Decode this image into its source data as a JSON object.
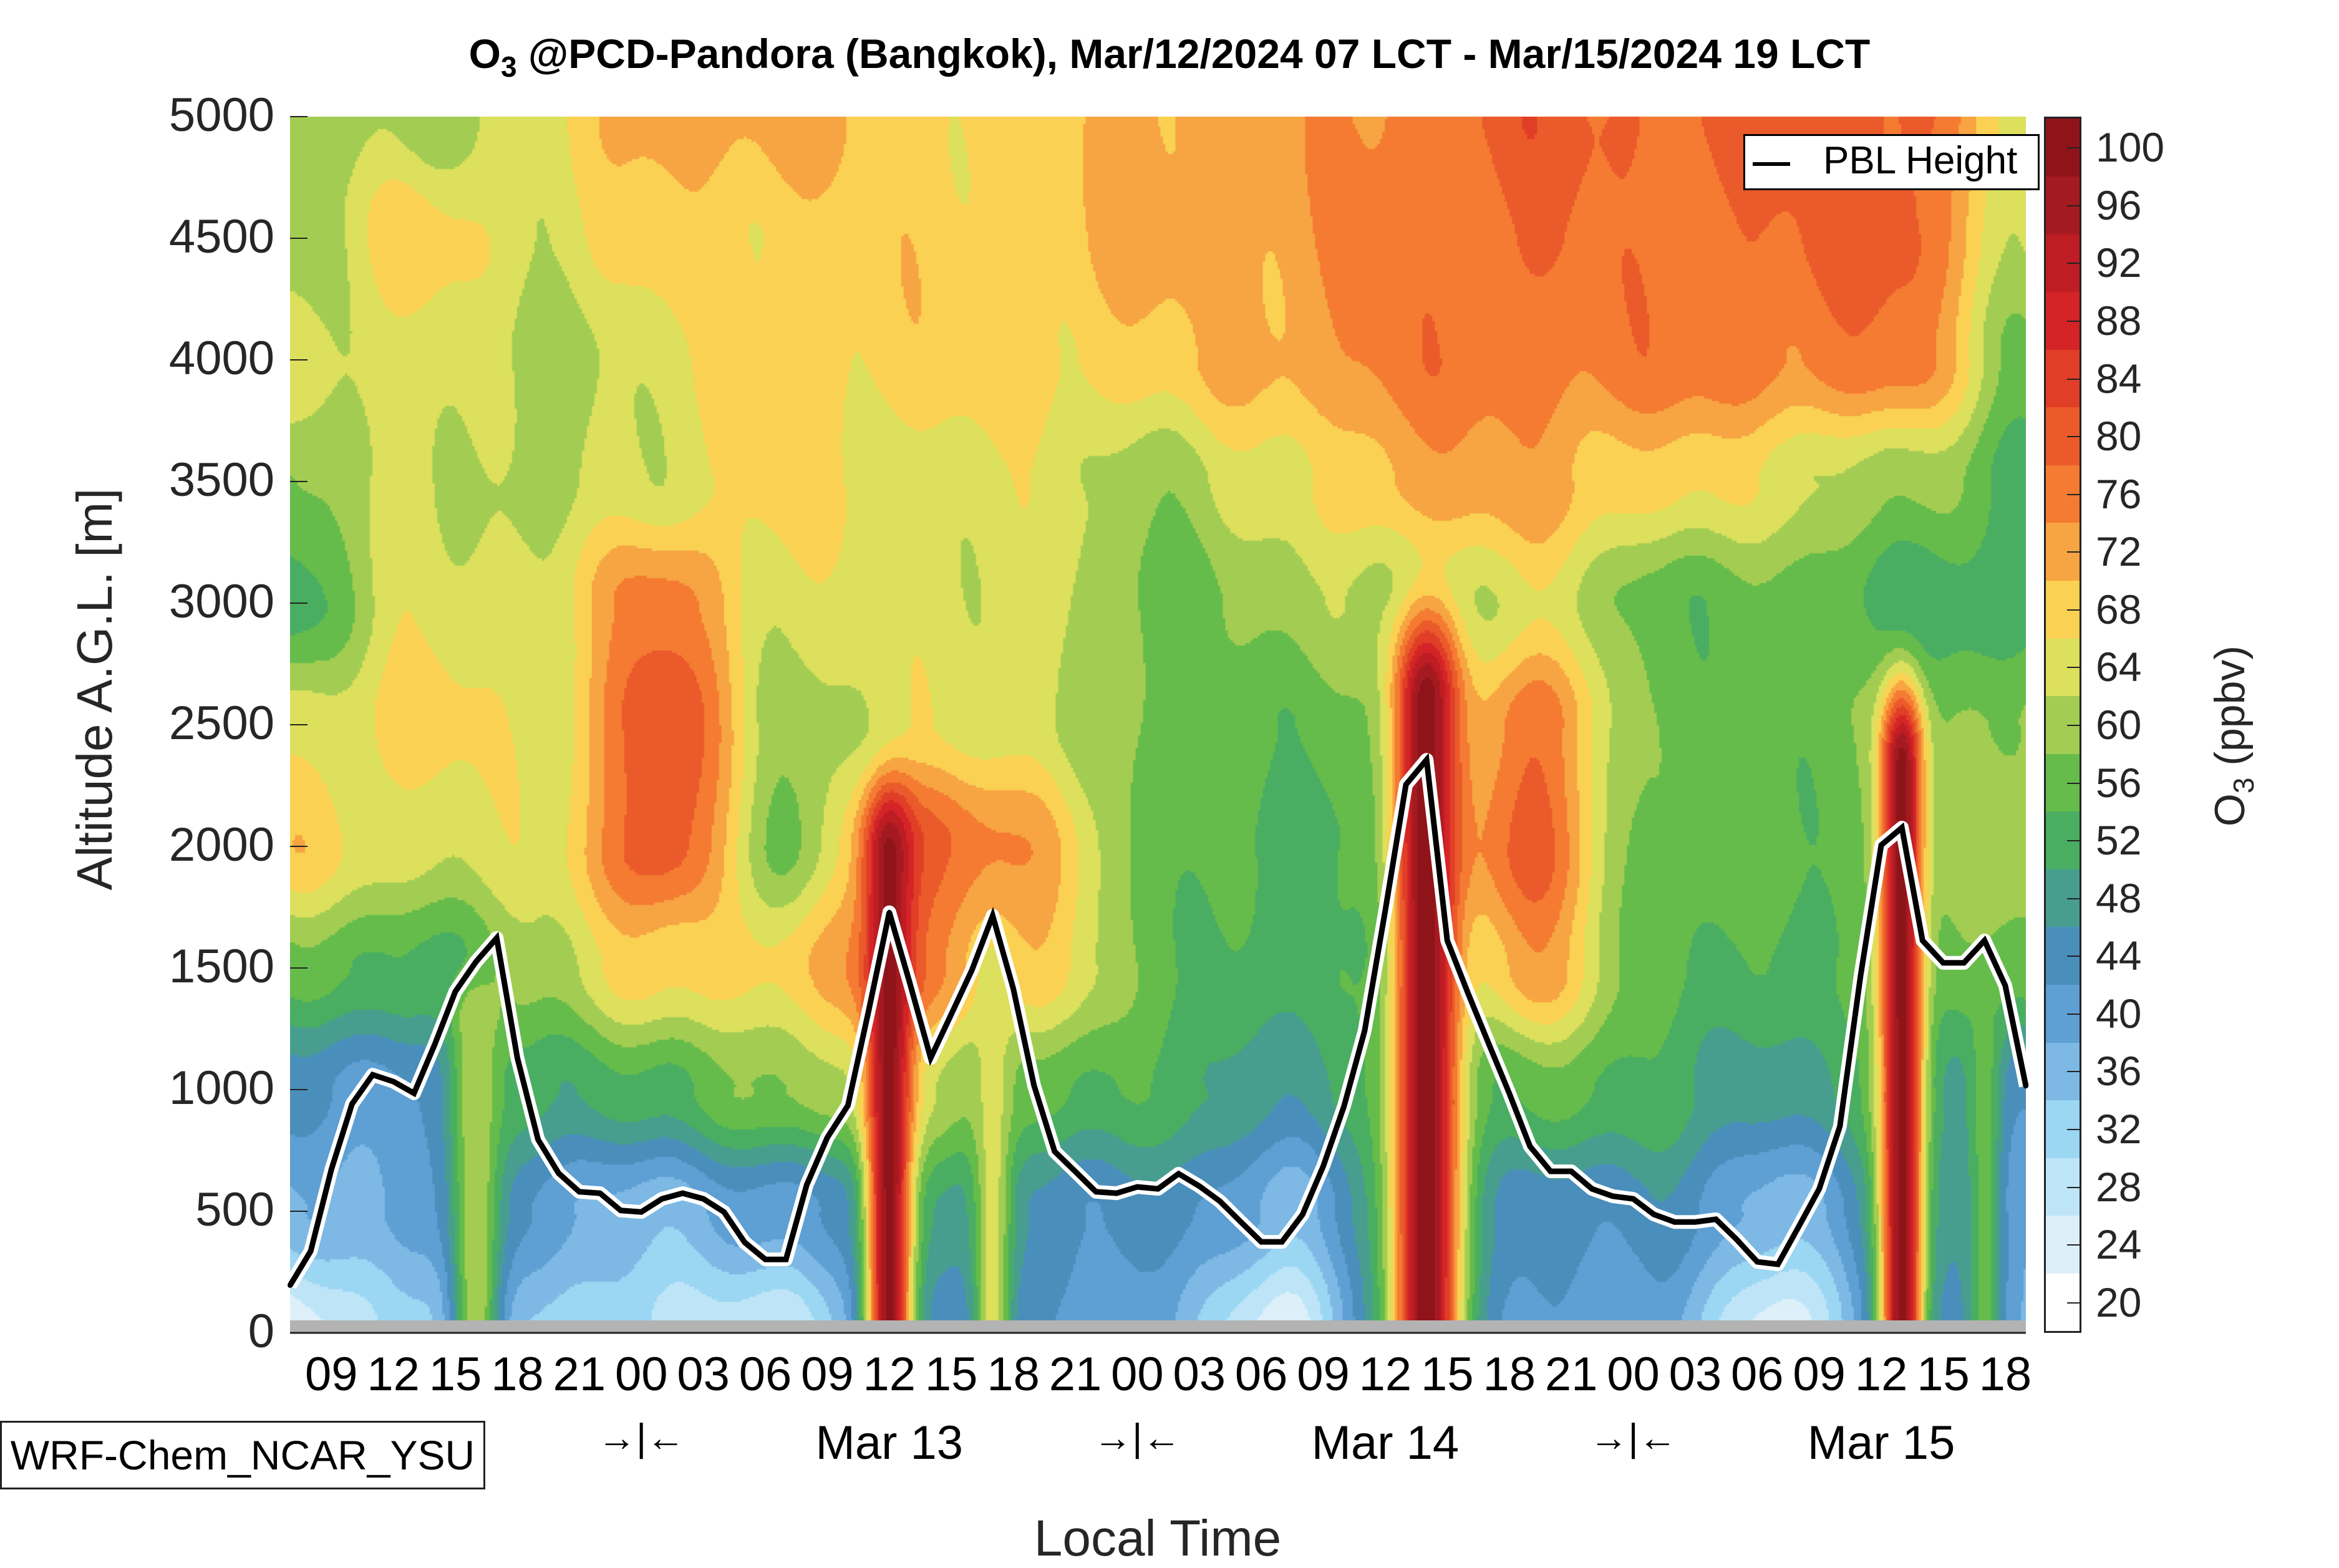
{
  "chart_data": {
    "type": "heatmap",
    "title_species": "O",
    "title_subscript": "3",
    "title_rest": " @PCD-Pandora (Bangkok), Mar/12/2024 07 LCT - Mar/15/2024 19 LCT",
    "xlabel": "Local Time",
    "ylabel": "Altitude A.G.L. [m]",
    "colorbar_label_species": "O",
    "colorbar_label_subscript": "3",
    "colorbar_label_rest": " (ppbv)",
    "model_label": "WRF-Chem_NCAR_YSU",
    "legend": {
      "entries": [
        {
          "label": "PBL Height",
          "color": "#000000"
        }
      ],
      "placement": "top-right"
    },
    "time_range_hours": [
      0,
      84
    ],
    "start_local_time": "Mar/12/2024 07 LCT",
    "ylim": [
      0,
      5000
    ],
    "yticks": [
      0,
      500,
      1000,
      1500,
      2000,
      2500,
      3000,
      3500,
      4000,
      4500,
      5000
    ],
    "xtick_hours": [
      2,
      5,
      8,
      11,
      14,
      17,
      20,
      23,
      26,
      29,
      32,
      35,
      38,
      41,
      44,
      47,
      50,
      53,
      56,
      59,
      62,
      65,
      68,
      71,
      74,
      77,
      80,
      83
    ],
    "xtick_labels": [
      "09",
      "12",
      "15",
      "18",
      "21",
      "00",
      "03",
      "06",
      "09",
      "12",
      "15",
      "18",
      "21",
      "00",
      "03",
      "06",
      "09",
      "12",
      "15",
      "18",
      "21",
      "00",
      "03",
      "06",
      "09",
      "12",
      "15",
      "18"
    ],
    "day_labels": [
      {
        "hour": 29,
        "label": "Mar 13"
      },
      {
        "hour": 53,
        "label": "Mar 14"
      },
      {
        "hour": 77,
        "label": "Mar 15"
      }
    ],
    "day_separators": [
      {
        "hour": 17,
        "label": "→|←"
      },
      {
        "hour": 41,
        "label": "→|←"
      },
      {
        "hour": 65,
        "label": "→|←"
      }
    ],
    "colorbar": {
      "levels": [
        20,
        24,
        28,
        32,
        36,
        40,
        44,
        48,
        52,
        56,
        60,
        64,
        68,
        72,
        76,
        80,
        84,
        88,
        92,
        96,
        100
      ],
      "tick_labels": [
        "20",
        "24",
        "28",
        "32",
        "36",
        "40",
        "44",
        "48",
        "52",
        "56",
        "60",
        "64",
        "68",
        "72",
        "76",
        "80",
        "84",
        "88",
        "92",
        "96",
        "100"
      ],
      "colors": [
        "#ffffff",
        "#ddf0fa",
        "#bde5f7",
        "#9bd6f3",
        "#7db9e4",
        "#5e9fd4",
        "#4a8ebb",
        "#479e8f",
        "#4aae62",
        "#66bc4a",
        "#a3cd52",
        "#dce05c",
        "#fad152",
        "#f7a442",
        "#f47b31",
        "#eb5a2a",
        "#e03e27",
        "#d42428",
        "#bd1d23",
        "#a51a20",
        "#8f141a"
      ],
      "range": [
        18,
        102
      ]
    },
    "terrain_color": "#b3b3b3",
    "field": {
      "grid_hours": [
        0,
        6,
        12,
        18,
        24,
        30,
        36,
        42,
        48,
        54,
        60,
        66,
        72,
        78,
        84
      ],
      "grid_altitudes": [
        0,
        500,
        1000,
        1500,
        2000,
        2500,
        3000,
        3500,
        4000,
        4500,
        5000
      ],
      "o3_ppbv_by_hour": [
        [
          22,
          36,
          44,
          56,
          68,
          64,
          52,
          56,
          64,
          60,
          60
        ],
        [
          32,
          40,
          40,
          52,
          64,
          68,
          64,
          64,
          64,
          68,
          60
        ],
        [
          32,
          40,
          52,
          60,
          64,
          64,
          64,
          60,
          60,
          64,
          64
        ],
        [
          30,
          36,
          52,
          68,
          82,
          82,
          76,
          64,
          64,
          68,
          72
        ],
        [
          26,
          40,
          60,
          68,
          56,
          60,
          64,
          68,
          68,
          68,
          72
        ],
        [
          44,
          48,
          60,
          76,
          80,
          64,
          64,
          64,
          68,
          68,
          68
        ],
        [
          40,
          44,
          56,
          68,
          72,
          64,
          64,
          64,
          68,
          68,
          68
        ],
        [
          40,
          44,
          52,
          56,
          56,
          56,
          56,
          60,
          68,
          72,
          72
        ],
        [
          22,
          36,
          48,
          52,
          52,
          56,
          60,
          64,
          72,
          72,
          72
        ],
        [
          52,
          52,
          52,
          52,
          56,
          56,
          60,
          72,
          76,
          76,
          76
        ],
        [
          40,
          44,
          56,
          72,
          80,
          78,
          64,
          72,
          76,
          78,
          80
        ],
        [
          40,
          44,
          52,
          56,
          56,
          56,
          56,
          68,
          76,
          76,
          78
        ],
        [
          22,
          36,
          48,
          52,
          56,
          56,
          56,
          64,
          76,
          78,
          80
        ],
        [
          46,
          48,
          52,
          56,
          56,
          56,
          52,
          60,
          76,
          80,
          80
        ],
        [
          38,
          40,
          44,
          56,
          62,
          60,
          52,
          52,
          58,
          62,
          64
        ]
      ],
      "surface_plumes": [
        {
          "hour": 9,
          "width_hours": 1.6,
          "peak_ppbv": 62,
          "top_m": 1500
        },
        {
          "hour": 29,
          "width_hours": 1.4,
          "peak_ppbv": 100,
          "top_m": 2300
        },
        {
          "hour": 34,
          "width_hours": 1.2,
          "peak_ppbv": 64,
          "top_m": 1700
        },
        {
          "hour": 55,
          "width_hours": 2.0,
          "peak_ppbv": 101,
          "top_m": 3050
        },
        {
          "hour": 78,
          "width_hours": 1.3,
          "peak_ppbv": 100,
          "top_m": 2750
        },
        {
          "hour": 82,
          "width_hours": 1.0,
          "peak_ppbv": 56,
          "top_m": 1400
        }
      ]
    },
    "series": [
      {
        "name": "PBL Height",
        "unit": "m",
        "hours": [
          0,
          1,
          2,
          3,
          4,
          5,
          6,
          7,
          8,
          9,
          10,
          11,
          12,
          13,
          14,
          15,
          16,
          17,
          18,
          19,
          20,
          21,
          22,
          23,
          24,
          25,
          26,
          27,
          28,
          29,
          30,
          31,
          32,
          33,
          34,
          35,
          36,
          37,
          38,
          39,
          40,
          41,
          42,
          43,
          44,
          45,
          46,
          47,
          48,
          49,
          50,
          51,
          52,
          53,
          54,
          55,
          56,
          57,
          58,
          59,
          60,
          61,
          62,
          63,
          64,
          65,
          66,
          67,
          68,
          69,
          70,
          71,
          72,
          73,
          74,
          75,
          76,
          77,
          78,
          79,
          80,
          81,
          82,
          83,
          84
        ],
        "values": [
          195,
          336,
          672,
          941,
          1061,
          1033,
          985,
          1185,
          1403,
          1526,
          1623,
          1131,
          795,
          656,
          580,
          574,
          503,
          497,
          551,
          574,
          551,
          497,
          372,
          302,
          302,
          608,
          803,
          935,
          1325,
          1729,
          1436,
          1130,
          1310,
          1492,
          1715,
          1415,
          1018,
          746,
          663,
          580,
          574,
          600,
          592,
          654,
          603,
          541,
          457,
          374,
          374,
          487,
          685,
          931,
          1241,
          1736,
          2254,
          2356,
          1613,
          1397,
          1190,
          985,
          767,
          664,
          664,
          592,
          562,
          551,
          487,
          456,
          456,
          467,
          384,
          292,
          282,
          436,
          592,
          849,
          1469,
          2005,
          2077,
          1613,
          1521,
          1521,
          1613,
          1428,
          1015
        ]
      }
    ]
  }
}
